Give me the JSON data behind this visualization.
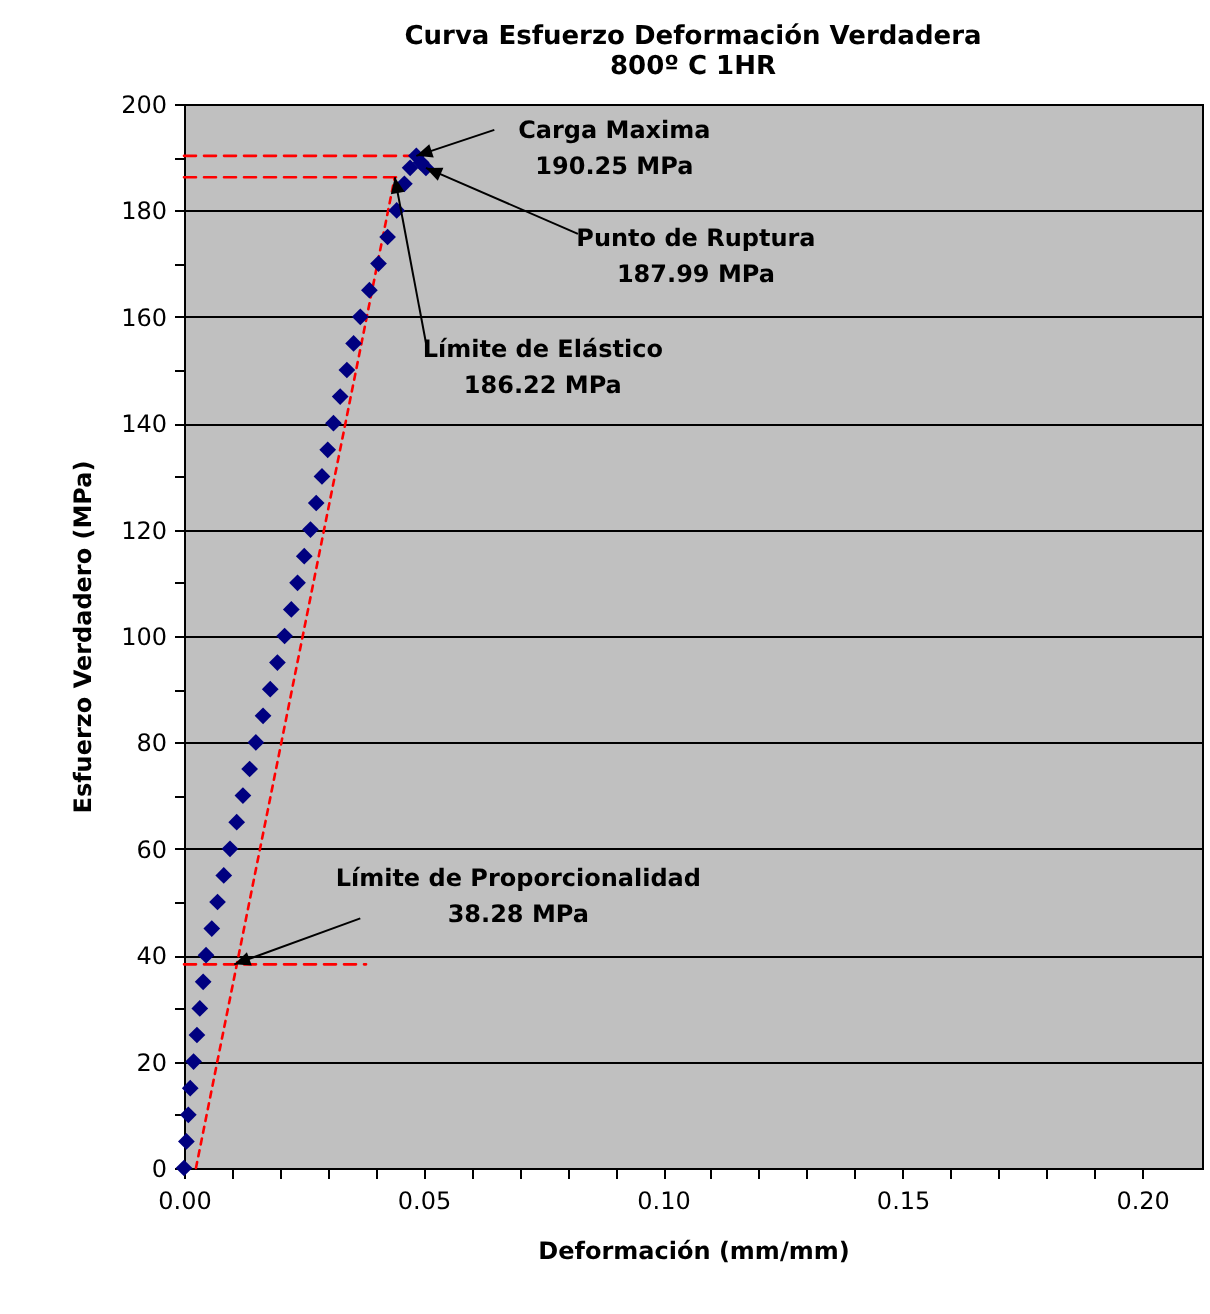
{
  "chart_data": {
    "type": "scatter",
    "title": "Curva Esfuerzo Deformación Verdadera",
    "subtitle": "800º C 1HR",
    "xlabel": "Deformación (mm/mm)",
    "ylabel": "Esfuerzo Verdadero (MPa)",
    "xlim": [
      0,
      0.2125
    ],
    "ylim": [
      0,
      200
    ],
    "xticks": [
      {
        "value": 0,
        "label": "0.00"
      },
      {
        "value": 0.01,
        "label": null
      },
      {
        "value": 0.02,
        "label": null
      },
      {
        "value": 0.03,
        "label": null
      },
      {
        "value": 0.04,
        "label": null
      },
      {
        "value": 0.05,
        "label": "0.05"
      },
      {
        "value": 0.06,
        "label": null
      },
      {
        "value": 0.07,
        "label": null
      },
      {
        "value": 0.08,
        "label": null
      },
      {
        "value": 0.09,
        "label": null
      },
      {
        "value": 0.1,
        "label": "0.10"
      },
      {
        "value": 0.11,
        "label": null
      },
      {
        "value": 0.12,
        "label": null
      },
      {
        "value": 0.13,
        "label": null
      },
      {
        "value": 0.14,
        "label": null
      },
      {
        "value": 0.15,
        "label": "0.15"
      },
      {
        "value": 0.16,
        "label": null
      },
      {
        "value": 0.17,
        "label": null
      },
      {
        "value": 0.18,
        "label": null
      },
      {
        "value": 0.19,
        "label": null
      },
      {
        "value": 0.2,
        "label": "0.20"
      }
    ],
    "yticks": [
      0,
      {
        "value": 10,
        "label": null
      },
      20,
      {
        "value": 30,
        "label": null
      },
      40,
      {
        "value": 50,
        "label": null
      },
      60,
      {
        "value": 70,
        "label": null
      },
      80,
      {
        "value": 90,
        "label": null
      },
      100,
      {
        "value": 110,
        "label": null
      },
      120,
      {
        "value": 130,
        "label": null
      },
      140,
      {
        "value": 150,
        "label": null
      },
      160,
      {
        "value": 170,
        "label": null
      },
      180,
      {
        "value": 190,
        "label": null
      },
      200
    ],
    "grid": "y",
    "series": [
      {
        "marker": "diamond",
        "color": "#000080",
        "x": [
          0,
          0.0005,
          0.0009,
          0.0013,
          0.002,
          0.0027,
          0.0033,
          0.004,
          0.0046,
          0.0058,
          0.007,
          0.0083,
          0.0096,
          0.011,
          0.0123,
          0.0137,
          0.015,
          0.0165,
          0.018,
          0.0195,
          0.021,
          0.0224,
          0.0237,
          0.0251,
          0.0264,
          0.0276,
          0.0288,
          0.03,
          0.0312,
          0.0326,
          0.034,
          0.0354,
          0.0368,
          0.0387,
          0.0406,
          0.0425,
          0.0444,
          0.046,
          0.0472,
          0.0485,
          0.0495,
          0.0505
        ],
        "values": [
          0,
          5,
          10,
          15,
          20,
          25,
          30,
          35,
          40,
          45,
          50,
          55,
          60,
          65,
          70,
          75,
          80,
          85,
          90,
          95,
          100,
          105,
          110,
          115,
          120,
          125,
          130,
          135,
          140,
          145,
          150,
          155,
          160,
          165,
          170,
          175,
          180,
          185,
          188,
          190.25,
          189,
          187.99
        ]
      },
      {
        "type": "line",
        "line_style": "dashed",
        "color": "#ff0000",
        "x": [
          0,
          0.0485
        ],
        "values": [
          190.25,
          190.25
        ]
      },
      {
        "type": "line",
        "line_style": "dashed",
        "color": "#ff0000",
        "x": [
          0,
          0.045
        ],
        "values": [
          186.22,
          186.22
        ]
      },
      {
        "type": "line",
        "line_style": "dashed",
        "color": "#ff0000",
        "x": [
          0,
          0.038
        ],
        "values": [
          38.28,
          38.28
        ]
      },
      {
        "type": "line",
        "line_style": "dotted",
        "color": "#ff0000",
        "x": [
          0.0025,
          0.044
        ],
        "values": [
          0,
          186.22
        ]
      }
    ],
    "annotations": [
      {
        "text": "Carga Maxima\n190.25 MPa",
        "x": 0.0485,
        "y": 190.25
      },
      {
        "text": "Punto de Ruptura\n187.99 MPa",
        "x": 0.0505,
        "y": 187.99
      },
      {
        "text": "Límite de Elástico\n186.22 MPa",
        "x": 0.044,
        "y": 186.22
      },
      {
        "text": "Límite de Proporcionalidad\n38.28 MPa",
        "x": 0.0105,
        "y": 38.28
      }
    ]
  }
}
